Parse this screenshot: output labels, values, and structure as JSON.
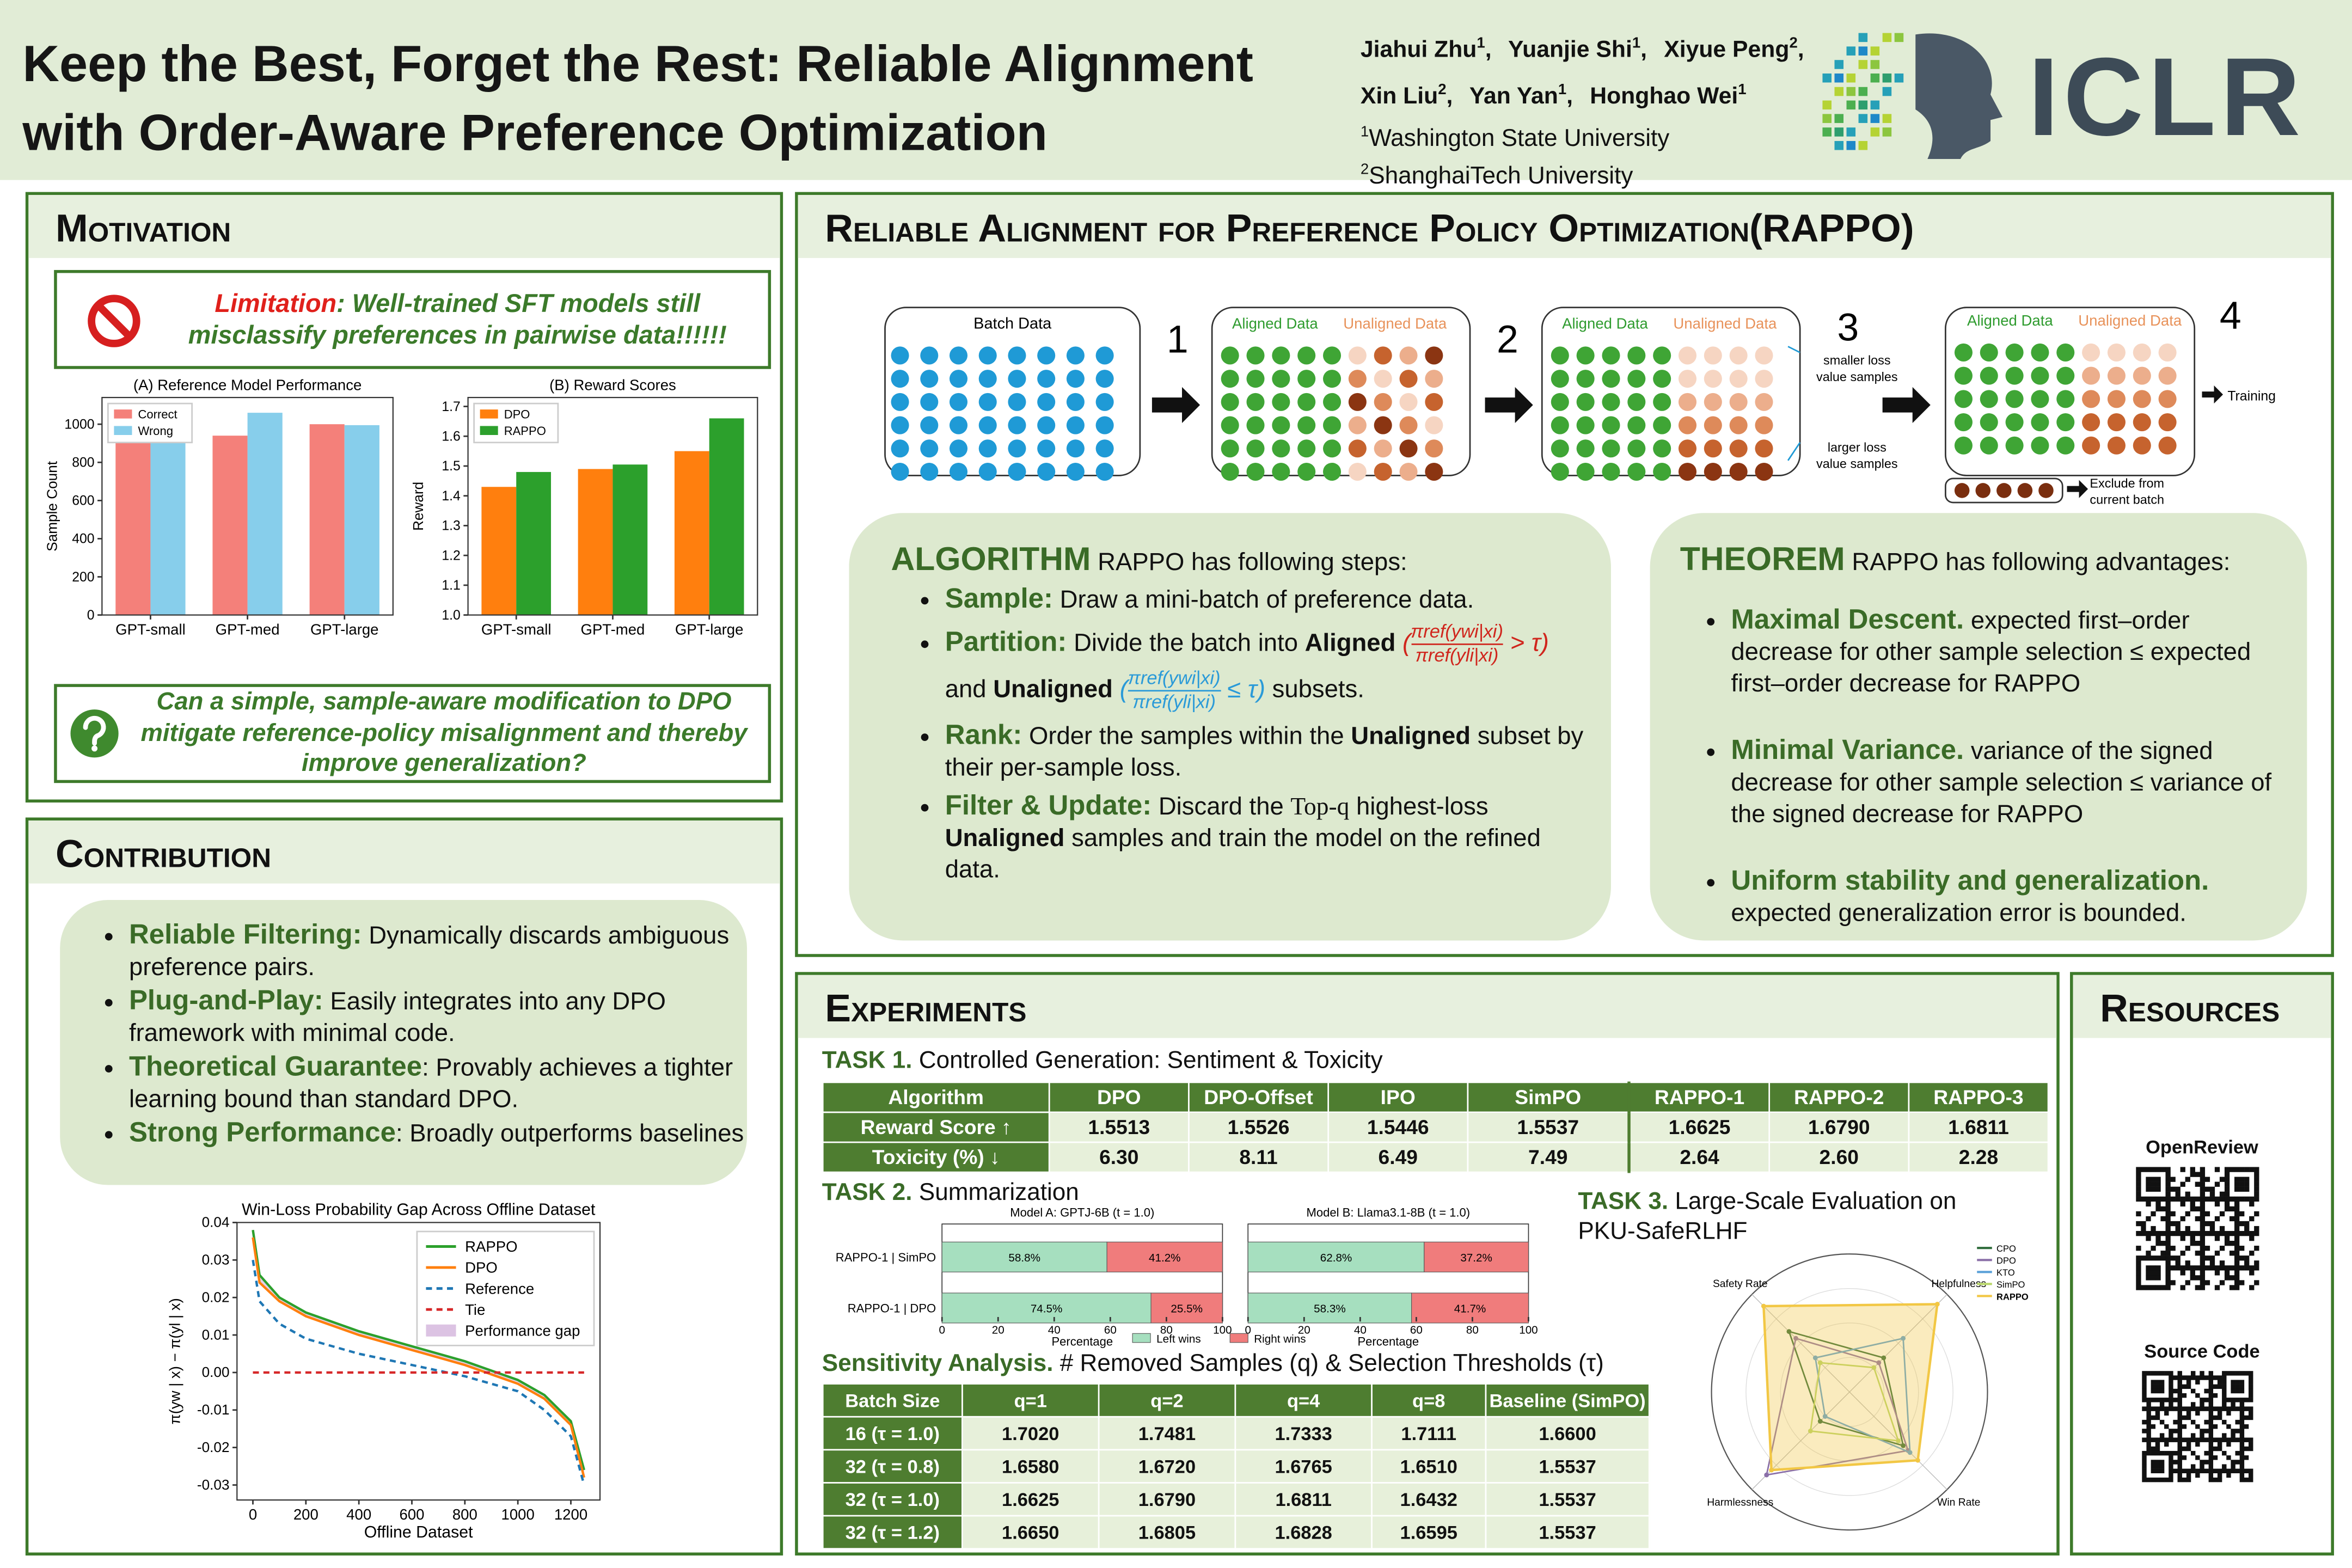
{
  "header": {
    "title": [
      "Keep the Best, Forget the Rest: Reliable Alignment",
      "with Order-Aware Preference Optimization"
    ],
    "authors": [
      {
        "name": "Jiahui Zhu",
        "aff": "1",
        "sep": ","
      },
      {
        "name": "Yuanjie Shi",
        "aff": "1",
        "sep": ","
      },
      {
        "name": "Xiyue Peng",
        "aff": "2",
        "sep": ","
      },
      {
        "name": "Xin Liu",
        "aff": "2",
        "sep": ","
      },
      {
        "name": "Yan Yan",
        "aff": "1",
        "sep": ","
      },
      {
        "name": "Honghao Wei",
        "aff": "1"
      }
    ],
    "affiliations": [
      {
        "num": "1",
        "name": "Washington State University"
      },
      {
        "num": "2",
        "name": "ShanghaiTech University"
      }
    ],
    "logo": "ICLR"
  },
  "motivation": {
    "title": "Motivation",
    "limitation": {
      "label": "Limitation",
      "text": ": Well-trained SFT models still misclassify preferences in pairwise data!!!!!!"
    },
    "chart_a": {
      "type": "bar",
      "title": "(A) Reference Model Performance",
      "categories": [
        "GPT-small",
        "GPT-med",
        "GPT-large"
      ],
      "series": [
        {
          "name": "Correct",
          "color": "#f4807a",
          "values": [
            910,
            940,
            1000
          ]
        },
        {
          "name": "Wrong",
          "color": "#87ceeb",
          "values": [
            1090,
            1060,
            995
          ]
        }
      ],
      "ylabel": "Sample Count",
      "ylim": [
        0,
        1140
      ],
      "yticks": [
        0,
        200,
        400,
        600,
        800,
        1000
      ]
    },
    "chart_b": {
      "type": "bar",
      "title": "(B) Reward Scores",
      "categories": [
        "GPT-small",
        "GPT-med",
        "GPT-large"
      ],
      "series": [
        {
          "name": "DPO",
          "color": "#ff7f0e",
          "values": [
            1.43,
            1.49,
            1.55
          ]
        },
        {
          "name": "RAPPO",
          "color": "#2ca02c",
          "values": [
            1.48,
            1.505,
            1.66
          ]
        }
      ],
      "ylabel": "Reward",
      "ylim": [
        1.0,
        1.73
      ],
      "yticks": [
        {
          "value": 1,
          "label": "1.0"
        },
        1.1,
        1.2,
        1.3,
        1.4,
        1.5,
        1.6,
        1.7
      ]
    },
    "question": "Can a simple, sample-aware modification to DPO mitigate reference-policy misalignment and thereby improve generalization?"
  },
  "contribution": {
    "title": "Contribution",
    "items": [
      {
        "lead": "Reliable Filtering:",
        "text": "Dynamically discards ambiguous preference pairs."
      },
      {
        "lead": "Plug-and-Play:",
        "text": "Easily integrates into any DPO framework with minimal code."
      },
      {
        "lead": "Theoretical Guarantee",
        "text": ": Provably achieves a tighter learning bound than standard DPO."
      },
      {
        "lead": "Strong Performance",
        "text": ": Broadly outperforms baselines"
      }
    ],
    "chart": {
      "type": "line",
      "title": "Win-Loss Probability Gap Across Offline Dataset",
      "xlabel": "Offline Dataset",
      "ylabel": "π(yw | x) − π(yl | x)",
      "x": [
        0,
        25,
        100,
        200,
        400,
        600,
        800,
        1000,
        1100,
        1200,
        1250
      ],
      "series": [
        {
          "name": "RAPPO",
          "color": "#2ca02c",
          "values": [
            0.038,
            0.026,
            0.02,
            0.016,
            0.011,
            0.007,
            0.003,
            -0.002,
            -0.006,
            -0.013,
            -0.026
          ]
        },
        {
          "name": "DPO",
          "color": "#ff7f0e",
          "values": [
            0.036,
            0.024,
            0.019,
            0.015,
            0.01,
            0.006,
            0.002,
            -0.003,
            -0.007,
            -0.014,
            -0.028
          ]
        },
        {
          "name": "Reference",
          "color": "#1f77b4",
          "dash": true,
          "values": [
            0.03,
            0.019,
            0.013,
            0.009,
            0.005,
            0.002,
            -0.001,
            -0.005,
            -0.01,
            -0.017,
            -0.03
          ]
        },
        {
          "name": "Tie",
          "color": "#d62728",
          "dash": true,
          "values": [
            0,
            0,
            0,
            0,
            0,
            0,
            0,
            0,
            0,
            0,
            0
          ]
        }
      ],
      "fill_between": {
        "name": "Performance gap",
        "color": "#dcc3e3",
        "series": [
          0,
          1
        ]
      },
      "xlim": [
        -60,
        1310
      ],
      "xticks": [
        0,
        200,
        400,
        600,
        800,
        1000,
        1200
      ],
      "ylim": [
        -0.034,
        0.04
      ],
      "yticks": [
        -0.03,
        -0.02,
        -0.01,
        {
          "value": 0,
          "label": "0.00"
        },
        0.01,
        0.02,
        0.03,
        0.04
      ]
    }
  },
  "method": {
    "title": "Reliable Alignment for Preference Policy Optimization(RAPPO)",
    "diagram": {
      "batch": "Batch Data",
      "steps": [
        "1",
        "2",
        "3",
        "4"
      ],
      "aligned": "Aligned Data",
      "unaligned": "Unaligned Data",
      "smaller": [
        "smaller loss",
        "value samples"
      ],
      "larger": [
        "larger loss",
        "value samples"
      ],
      "training": "Training",
      "exclude": [
        "Exclude from",
        "current batch"
      ]
    },
    "algorithm": {
      "heading": "ALGORITHM",
      "intro": "RAPPO has following steps:",
      "items": [
        {
          "lead": "Sample:",
          "parts": [
            {
              "text": "Draw a mini-batch of preference data."
            }
          ]
        },
        {
          "lead": "Partition:",
          "parts": [
            {
              "text": "Divide the batch into"
            },
            {
              "text": "Aligned",
              "bold": true
            },
            {
              "pre": "(",
              "num": "πref(ywi|xi)",
              "den": "πref(yli|xi)",
              "post": "> τ)",
              "color": "#d0261d"
            },
            {
              "text": "and"
            },
            {
              "text": "Unaligned",
              "bold": true
            },
            {
              "pre": "(",
              "num": "πref(ywi|xi)",
              "den": "πref(yli|xi)",
              "post": "≤ τ)",
              "color": "#2a9ad8"
            },
            {
              "text": "subsets."
            }
          ]
        },
        {
          "lead": "Rank:",
          "parts": [
            {
              "text": "Order the samples within the"
            },
            {
              "text": "Unaligned",
              "bold": true
            },
            {
              "text": "subset by their per-sample loss."
            }
          ]
        },
        {
          "lead": "Filter & Update:",
          "parts": [
            {
              "text": "Discard the"
            },
            {
              "text": "Top-q",
              "serif": true
            },
            {
              "text": "highest-loss"
            },
            {
              "text": "Unaligned",
              "bold": true
            },
            {
              "text": "samples and train the model on the refined data."
            }
          ]
        }
      ]
    },
    "theorem": {
      "heading": "THEOREM",
      "intro": "RAPPO has following advantages:",
      "items": [
        {
          "lead": "Maximal Descent.",
          "text": "expected first–order decrease for other sample selection ≤ expected first–order decrease for RAPPO"
        },
        {
          "lead": "Minimal Variance.",
          "text": "variance of the signed decrease for other sample selection ≤ variance of the signed decrease for RAPPO"
        },
        {
          "lead": "Uniform stability and generalization.",
          "text": "expected generalization error is bounded."
        }
      ]
    }
  },
  "experiments": {
    "title": "Experiments",
    "task1": {
      "label": "TASK 1.",
      "title": "Controlled Generation: Sentiment & Toxicity",
      "table": {
        "header": [
          "Algorithm",
          "DPO",
          "DPO-Offset",
          "IPO",
          "SimPO",
          "RAPPO-1",
          "RAPPO-2",
          "RAPPO-3"
        ],
        "rows": [
          [
            "Reward Score ↑",
            "1.5513",
            "1.5526",
            "1.5446",
            "1.5537",
            "1.6625",
            "1.6790",
            "1.6811"
          ],
          [
            "Toxicity (%) ↓",
            "6.30",
            "8.11",
            "6.49",
            "7.49",
            "2.64",
            "2.60",
            "2.28"
          ]
        ]
      }
    },
    "task2": {
      "label": "TASK 2.",
      "title": "Summarization",
      "chart": {
        "type": "hbar_stacked",
        "categories": [
          "RAPPO-1 | SimPO",
          "RAPPO-1 | DPO"
        ],
        "series": [
          {
            "name": "Left wins",
            "color": "#a6dfbf"
          },
          {
            "name": "Right wins",
            "color": "#f07c7c"
          }
        ],
        "xlim": [
          0,
          100
        ],
        "xticks": [
          0,
          20,
          40,
          60,
          80,
          100
        ],
        "panels": [
          {
            "title": "Model A: GPTJ-6B (t = 1.0)",
            "xlabel": "Percentage",
            "values": [
              [
                58.8,
                74.5
              ],
              [
                41.2,
                25.5
              ]
            ],
            "value_labels": [
              [
                "58.8%",
                "74.5%"
              ],
              [
                "41.2%",
                "25.5%"
              ]
            ]
          },
          {
            "title": "Model B: Llama3.1-8B (t = 1.0)",
            "xlabel": "Percentage",
            "values": [
              [
                62.8,
                58.3
              ],
              [
                37.2,
                41.7
              ]
            ],
            "value_labels": [
              [
                "62.8%",
                "58.3%"
              ],
              [
                "37.2%",
                "41.7%"
              ]
            ]
          }
        ]
      }
    },
    "task3": {
      "label": "TASK 3.",
      "title": "Large-Scale Evaluation on PKU-SafeRLHF",
      "chart": {
        "type": "radar",
        "axes": [
          "Safety Rate",
          "Helpfulness",
          "Win Rate",
          "Harmlessness"
        ],
        "rlim": [
          0,
          1
        ],
        "series": [
          {
            "name": "CPO",
            "color": "#2e6b3a",
            "values": [
              0.62,
              0.35,
              0.55,
              0.3
            ]
          },
          {
            "name": "DPO",
            "color": "#8a6fa8",
            "values": [
              0.55,
              0.3,
              0.6,
              0.85
            ]
          },
          {
            "name": "KTO",
            "color": "#5aa0d8",
            "values": [
              0.35,
              0.55,
              0.62,
              0.25
            ]
          },
          {
            "name": "SimPO",
            "color": "#b9d66a",
            "values": [
              0.3,
              0.25,
              0.5,
              0.4
            ]
          },
          {
            "name": "RAPPO",
            "color": "#f2c744",
            "fill": true,
            "values": [
              0.88,
              0.9,
              0.7,
              0.8
            ]
          }
        ]
      }
    },
    "sensitivity": {
      "label": "Sensitivity Analysis.",
      "title": "# Removed Samples (q) & Selection Thresholds (τ)",
      "table": {
        "header": [
          "Batch Size",
          "q=1",
          "q=2",
          "q=4",
          "q=8",
          "Baseline (SimPO)"
        ],
        "rows": [
          [
            "16 (τ = 1.0)",
            "1.7020",
            "1.7481",
            "1.7333",
            "1.7111",
            "1.6600"
          ],
          [
            "32 (τ = 0.8)",
            "1.6580",
            "1.6720",
            "1.6765",
            "1.6510",
            "1.5537"
          ],
          [
            "32 (τ = 1.0)",
            "1.6625",
            "1.6790",
            "1.6811",
            "1.6432",
            "1.5537"
          ],
          [
            "32 (τ = 1.2)",
            "1.6650",
            "1.6805",
            "1.6828",
            "1.6595",
            "1.5537"
          ]
        ]
      }
    }
  },
  "resources": {
    "title": "Resources",
    "links": [
      "OpenReview",
      "Source Code"
    ]
  }
}
